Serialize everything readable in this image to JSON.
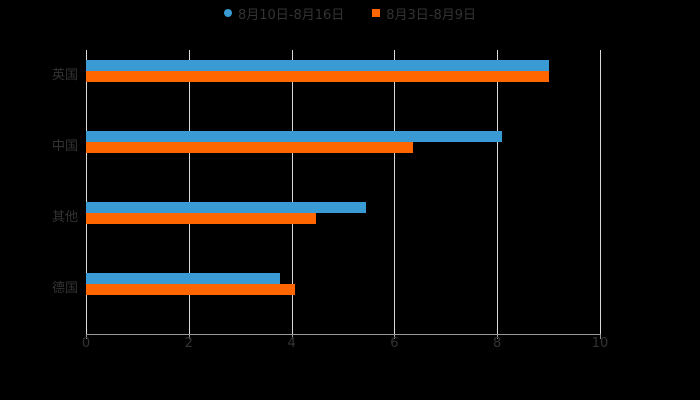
{
  "chart_data": {
    "type": "bar",
    "orientation": "horizontal",
    "title": "",
    "categories": [
      "英国",
      "中国",
      "其他",
      "德国"
    ],
    "series": [
      {
        "name": "8月10日-8月16日",
        "color": "#3a9ad3",
        "values": [
          9.0,
          8.1,
          5.45,
          3.77
        ]
      },
      {
        "name": "8月3日-8月9日",
        "color": "#ff6600",
        "values": [
          9.0,
          6.36,
          4.47,
          4.07
        ]
      }
    ],
    "xlabel": "",
    "ylabel": "",
    "xlim": [
      0,
      10
    ],
    "xticks": [
      "0",
      "2",
      "4",
      "6",
      "8",
      "10"
    ],
    "grid": true,
    "legend_position": "top"
  },
  "legend": {
    "items": [
      {
        "label": "8月10日-8月16日",
        "color": "#3a9ad3",
        "shape": "circle"
      },
      {
        "label": "8月3日-8月9日",
        "color": "#ff6600",
        "shape": "square"
      }
    ]
  }
}
